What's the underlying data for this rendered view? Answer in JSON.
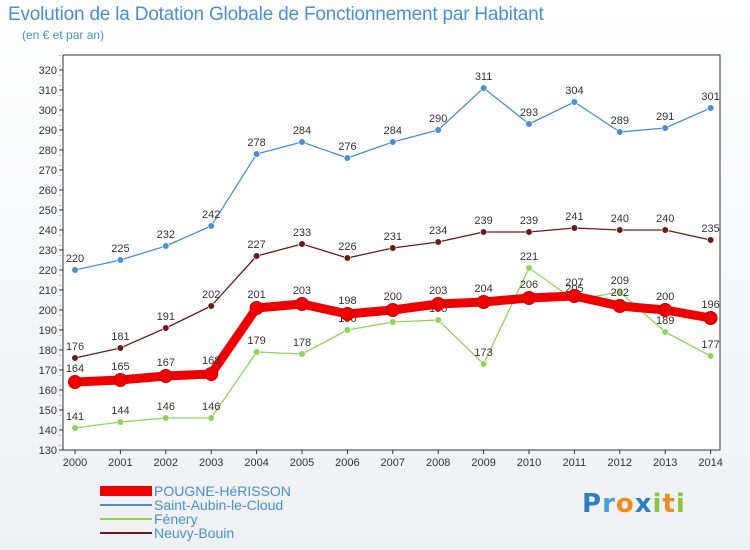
{
  "title": "Evolution de la Dotation Globale de Fonctionnement par Habitant",
  "subtitle": "(en € et par an)",
  "logo": {
    "text": "Proxiti"
  },
  "chart_data": {
    "type": "line",
    "x": [
      "2000",
      "2001",
      "2002",
      "2003",
      "2004",
      "2005",
      "2006",
      "2007",
      "2008",
      "2009",
      "2010",
      "2011",
      "2012",
      "2013",
      "2014"
    ],
    "ylim": [
      130,
      320
    ],
    "y_ticks": [
      130,
      140,
      150,
      160,
      170,
      180,
      190,
      200,
      210,
      220,
      230,
      240,
      250,
      260,
      270,
      280,
      290,
      300,
      310,
      320
    ],
    "grid": false,
    "legend_position": "bottom-left",
    "series": [
      {
        "name": "Saint-Aubin-le-Cloud",
        "color": "#4a8fd0",
        "values": [
          220,
          225,
          232,
          242,
          278,
          284,
          276,
          284,
          290,
          311,
          293,
          304,
          289,
          291,
          301
        ]
      },
      {
        "name": "Neuvy-Bouin",
        "color": "#6b1a1a",
        "values": [
          176,
          181,
          191,
          202,
          227,
          233,
          226,
          231,
          234,
          239,
          239,
          241,
          240,
          240,
          235
        ]
      },
      {
        "name": "Fénery",
        "color": "#8fd45a",
        "values": [
          141,
          144,
          146,
          146,
          179,
          178,
          190,
          194,
          195,
          173,
          221,
          205,
          209,
          189,
          177
        ]
      },
      {
        "name": "POUGNE-HéRISSON",
        "color": "#ee0000",
        "values": [
          164,
          165,
          167,
          168,
          201,
          203,
          198,
          200,
          203,
          204,
          206,
          207,
          202,
          200,
          196
        ]
      }
    ]
  }
}
